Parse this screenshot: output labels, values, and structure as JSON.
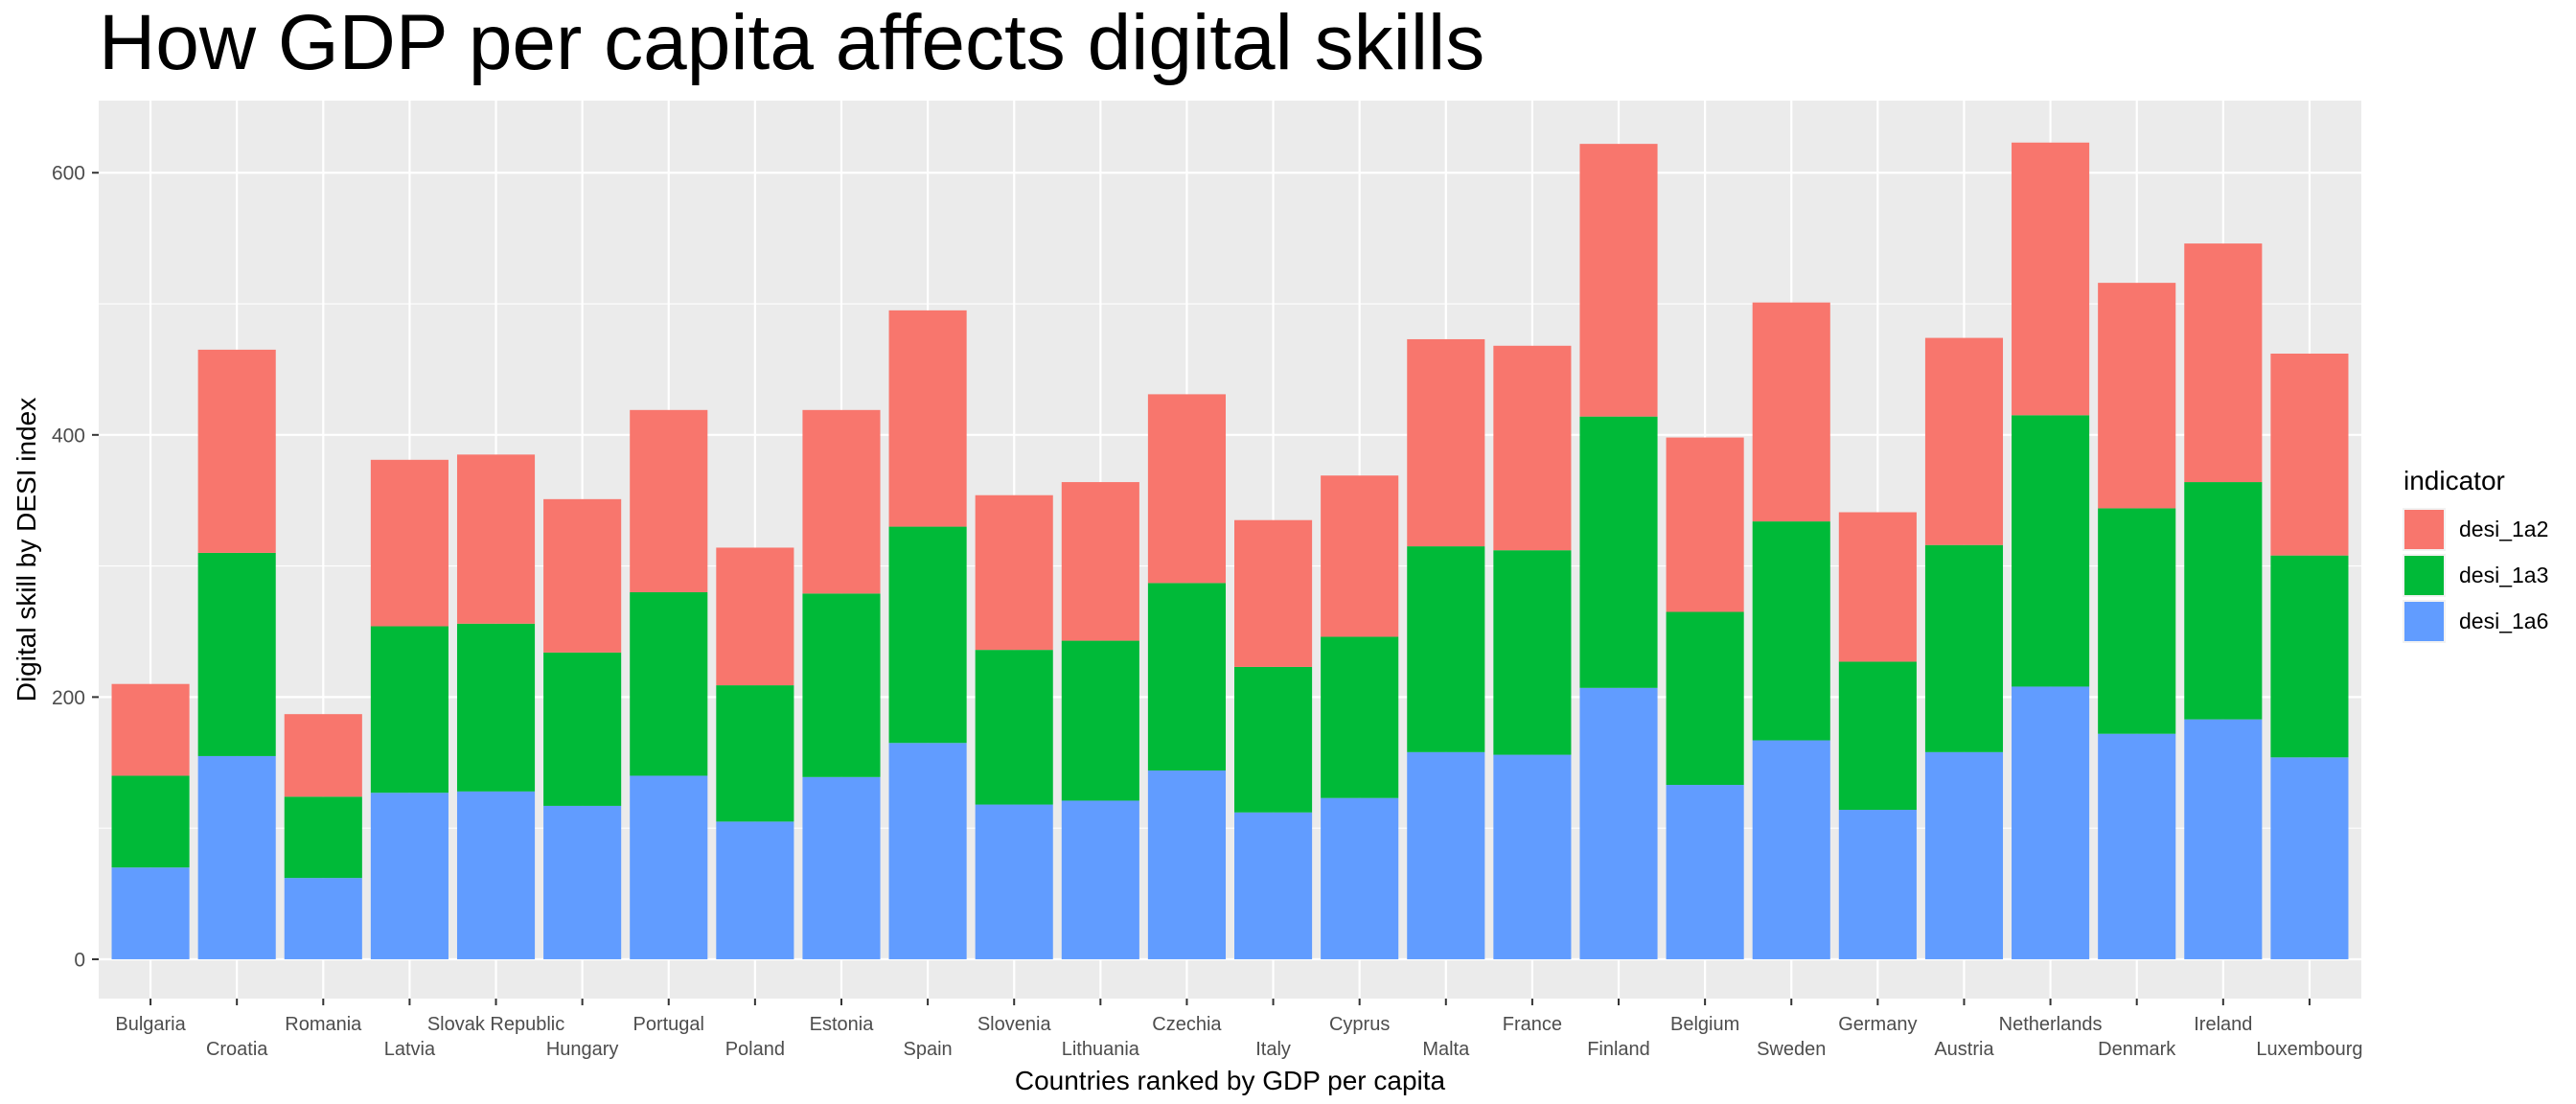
{
  "chart_data": {
    "type": "bar",
    "stacked": true,
    "title": "How GDP per capita affects digital skills",
    "xlabel": "Countries ranked by GDP per capita",
    "ylabel": "Digital skill by DESI index",
    "ylim": [
      -30,
      655
    ],
    "yticks": [
      0,
      200,
      400,
      600
    ],
    "grid": true,
    "legend": {
      "title": "indicator",
      "position": "right"
    },
    "categories": [
      "Bulgaria",
      "Croatia",
      "Romania",
      "Latvia",
      "Slovak Republic",
      "Hungary",
      "Portugal",
      "Poland",
      "Estonia",
      "Spain",
      "Slovenia",
      "Lithuania",
      "Czechia",
      "Italy",
      "Cyprus",
      "Malta",
      "France",
      "Finland",
      "Belgium",
      "Sweden",
      "Germany",
      "Austria",
      "Netherlands",
      "Denmark",
      "Ireland",
      "Luxembourg"
    ],
    "series": [
      {
        "name": "desi_1a2",
        "color": "#F8766D",
        "values": [
          70,
          155,
          63,
          127,
          129,
          117,
          139,
          105,
          140,
          165,
          118,
          121,
          144,
          112,
          123,
          158,
          156,
          208,
          133,
          167,
          114,
          158,
          208,
          172,
          182,
          154
        ]
      },
      {
        "name": "desi_1a3",
        "color": "#00BA38",
        "values": [
          70,
          155,
          62,
          127,
          128,
          117,
          140,
          104,
          140,
          165,
          118,
          122,
          143,
          111,
          123,
          157,
          156,
          207,
          132,
          167,
          113,
          158,
          207,
          172,
          181,
          154
        ]
      },
      {
        "name": "desi_1a6",
        "color": "#619CFF",
        "values": [
          70,
          155,
          62,
          127,
          128,
          117,
          140,
          105,
          139,
          165,
          118,
          121,
          144,
          112,
          123,
          158,
          156,
          207,
          133,
          167,
          114,
          158,
          208,
          172,
          183,
          154
        ]
      }
    ]
  }
}
